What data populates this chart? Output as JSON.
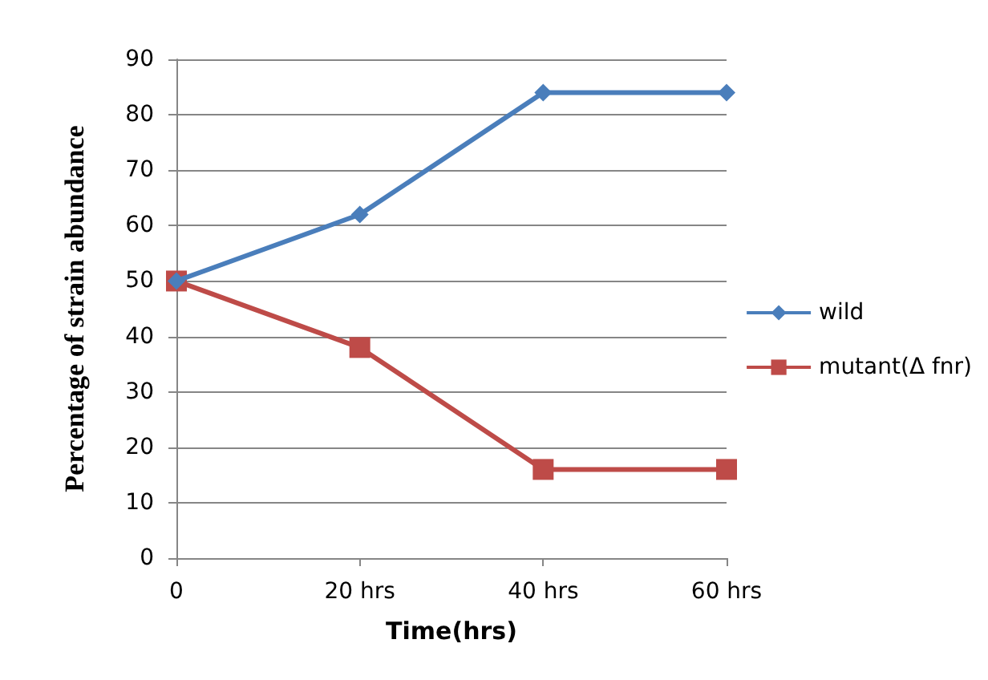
{
  "chart_data": {
    "type": "line",
    "xlabel": "Time(hrs)",
    "ylabel": "Percentage of strain abundance",
    "categories": [
      "0",
      "20 hrs",
      "40 hrs",
      "60 hrs"
    ],
    "series": [
      {
        "name": "wild",
        "color": "#4a7ebb",
        "marker": "diamond",
        "values": [
          50,
          62,
          84,
          84
        ]
      },
      {
        "name": "mutant(Δ fnr)",
        "color": "#be4b48",
        "marker": "square",
        "values": [
          50,
          38,
          16,
          16
        ]
      }
    ],
    "ylim": [
      0,
      90
    ],
    "yticks": [
      0,
      10,
      20,
      30,
      40,
      50,
      60,
      70,
      80,
      90
    ],
    "grid": "y",
    "legend": "right"
  }
}
